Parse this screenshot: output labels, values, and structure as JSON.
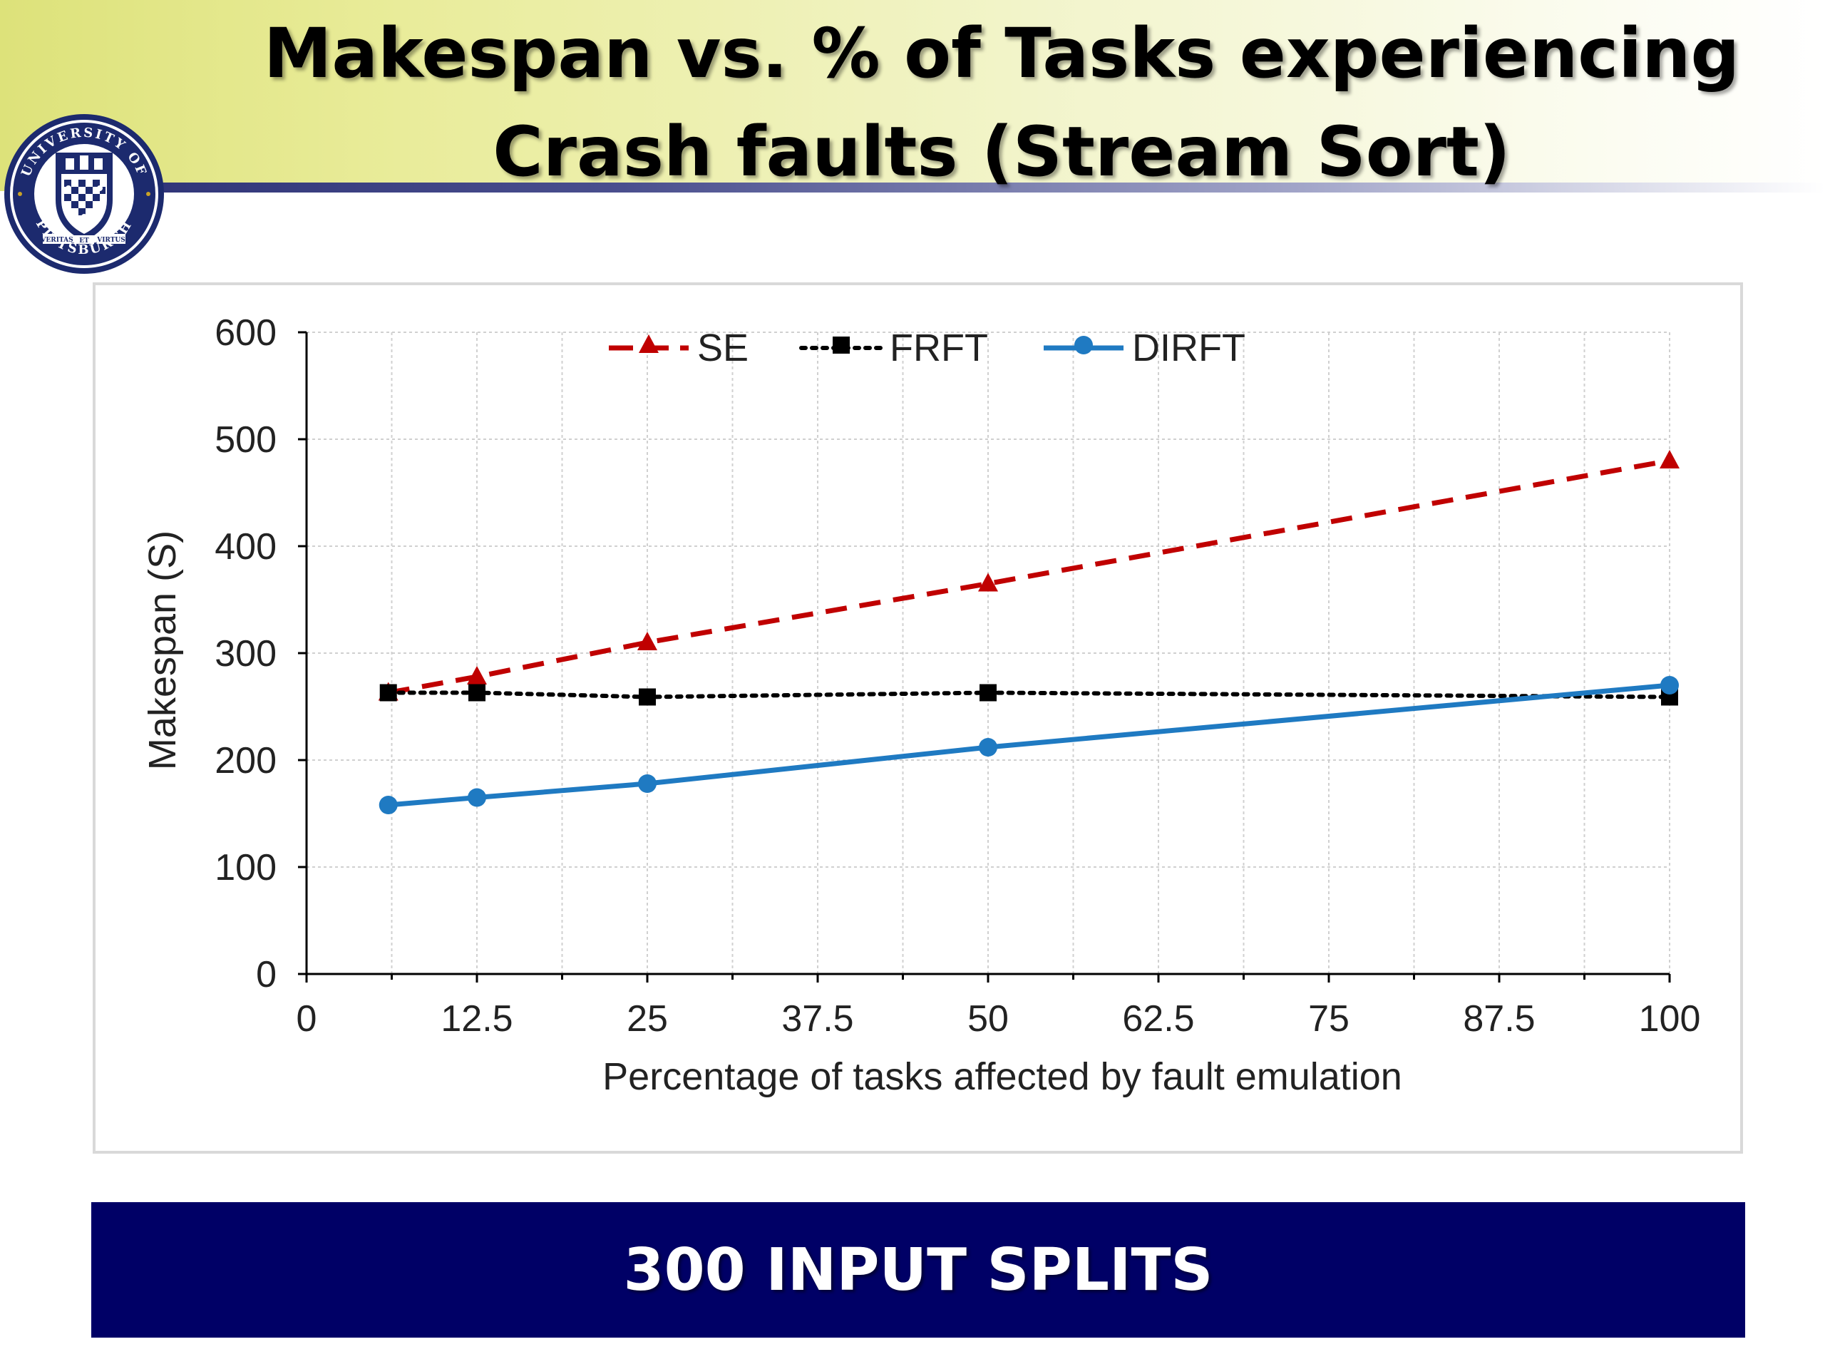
{
  "slide": {
    "title": "Makespan vs. % of Tasks experiencing Crash faults (Stream Sort)",
    "footer": "300 INPUT SPLITS"
  },
  "logo": {
    "name": "university-of-pittsburgh-seal",
    "text_top": "UNIVERSITY OF",
    "text_bottom": "PITTSBURGH",
    "motto_left": "VERITAS",
    "motto_mid": "ET",
    "motto_right": "VIRTUS",
    "colors": {
      "navy": "#1c2a6e",
      "gold": "#c9a227"
    }
  },
  "colors": {
    "footer_background": "#000066",
    "se": "#c00000",
    "frft": "#000000",
    "dirft": "#1f7ac2",
    "grid": "#d0d0d0"
  },
  "chart_data": {
    "type": "line",
    "title": "",
    "xlabel": "Percentage of tasks affected by fault emulation",
    "ylabel": "Makespan (S)",
    "xlim": [
      0,
      100
    ],
    "ylim": [
      0,
      600
    ],
    "xticks": [
      "0",
      "12.5",
      "25",
      "37.5",
      "50",
      "62.5",
      "75",
      "87.5",
      "100"
    ],
    "yticks": [
      "0",
      "100",
      "200",
      "300",
      "400",
      "500",
      "600"
    ],
    "grid": true,
    "legend": "top-center",
    "series": [
      {
        "name": "SE",
        "style": "dashed",
        "marker": "triangle",
        "color": "#c00000",
        "x": [
          6,
          12.5,
          25,
          50,
          100
        ],
        "y": [
          263,
          278,
          310,
          365,
          480
        ]
      },
      {
        "name": "FRFT",
        "style": "dotted",
        "marker": "square",
        "color": "#000000",
        "x": [
          6,
          12.5,
          25,
          50,
          100
        ],
        "y": [
          263,
          263,
          259,
          263,
          259
        ]
      },
      {
        "name": "DIRFT",
        "style": "solid",
        "marker": "circle",
        "color": "#1f7ac2",
        "x": [
          6,
          12.5,
          25,
          50,
          100
        ],
        "y": [
          158,
          165,
          178,
          212,
          270
        ]
      }
    ]
  }
}
